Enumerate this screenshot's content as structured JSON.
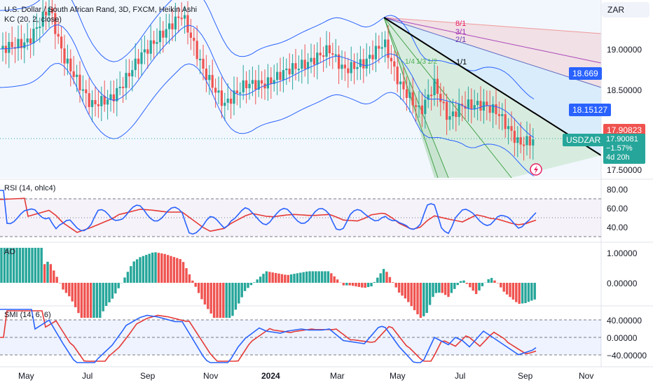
{
  "header": {
    "title": "U.S. Dollar / South African Rand, 3D, FXCM, Heikin Ashi",
    "kc_label": "KC (20, 2, close)",
    "currency_button": "ZAR"
  },
  "price_axis": {
    "ticks": [
      "19.00000",
      "18.50000",
      "17.50000"
    ],
    "labels": {
      "kc_upper_value": "18.669",
      "kc_mid_value": "18.15127",
      "last_price": "17.90823",
      "symbol": "USDZAR",
      "bid": "17.90081",
      "change": "−1.57%",
      "countdown": "4d 20h"
    }
  },
  "fan_labels": [
    "8/1",
    "3/1",
    "2/1",
    "1/1",
    "1/4",
    "1/3",
    "1/2"
  ],
  "rsi": {
    "label": "RSI (14, ohlc4)",
    "ticks": [
      "80.00",
      "60.00",
      "40.00"
    ]
  },
  "ao": {
    "label": "AO",
    "ticks": [
      "1.00000",
      "0.00000"
    ]
  },
  "smi": {
    "label": "SMI (14, 6, 6)",
    "ticks": [
      "40.00000",
      "0.00000",
      "−40.00000"
    ]
  },
  "time_axis": [
    "May",
    "Jul",
    "Sep",
    "Nov",
    "2024",
    "Mar",
    "May",
    "Jul",
    "Sep",
    "Nov"
  ],
  "colors": {
    "up": "#26a69a",
    "down": "#ef5350",
    "kc": "#2962ff",
    "rsi": "#2962ff",
    "rsi_ma": "#e53935",
    "trendline": "#000000",
    "last_price_bg": "#ef5350",
    "symbol_bg": "#26a69a",
    "kc_tag_bg": "#2962ff"
  }
}
